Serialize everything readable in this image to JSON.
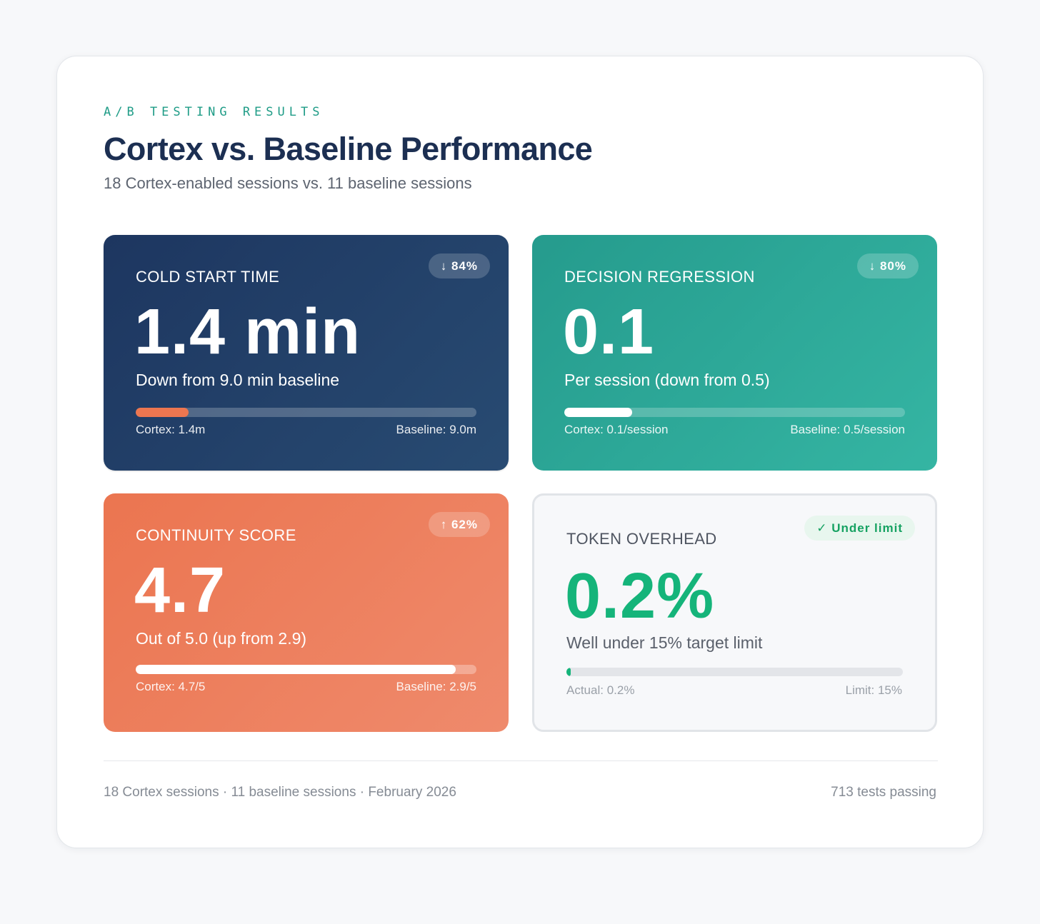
{
  "header": {
    "eyebrow": "A/B TESTING RESULTS",
    "title": "Cortex vs. Baseline Performance",
    "subtitle": "18 Cortex-enabled sessions vs. 11 baseline sessions"
  },
  "cards": [
    {
      "label": "COLD START TIME",
      "badge": "↓ 84%",
      "value": "1.4 min",
      "description": "Down from 9.0 min baseline",
      "progress": 0.156,
      "caption_left": "Cortex: 1.4m",
      "caption_right": "Baseline: 9.0m",
      "color": "#1d3660",
      "bar_color": "#ec7650"
    },
    {
      "label": "DECISION REGRESSION",
      "badge": "↓ 80%",
      "value": "0.1",
      "description": "Per session (down from 0.5)",
      "progress": 0.2,
      "caption_left": "Cortex: 0.1/session",
      "caption_right": "Baseline: 0.5/session",
      "color": "#2aa594",
      "bar_color": "#ffffff"
    },
    {
      "label": "CONTINUITY SCORE",
      "badge": "↑ 62%",
      "value": "4.7",
      "description": "Out of 5.0 (up from 2.9)",
      "progress": 0.94,
      "caption_left": "Cortex: 4.7/5",
      "caption_right": "Baseline: 2.9/5",
      "color": "#eb7550",
      "bar_color": "#ffffff"
    },
    {
      "label": "TOKEN OVERHEAD",
      "badge": "✓ Under limit",
      "value": "0.2%",
      "description": "Well under 15% target limit",
      "progress": 0.013,
      "caption_left": "Actual: 0.2%",
      "caption_right": "Limit: 15%",
      "color": "#15b47a",
      "bar_color": "#15b47a"
    }
  ],
  "footer": {
    "left": "18 Cortex sessions · 11 baseline sessions · February 2026",
    "right": "713 tests passing"
  }
}
